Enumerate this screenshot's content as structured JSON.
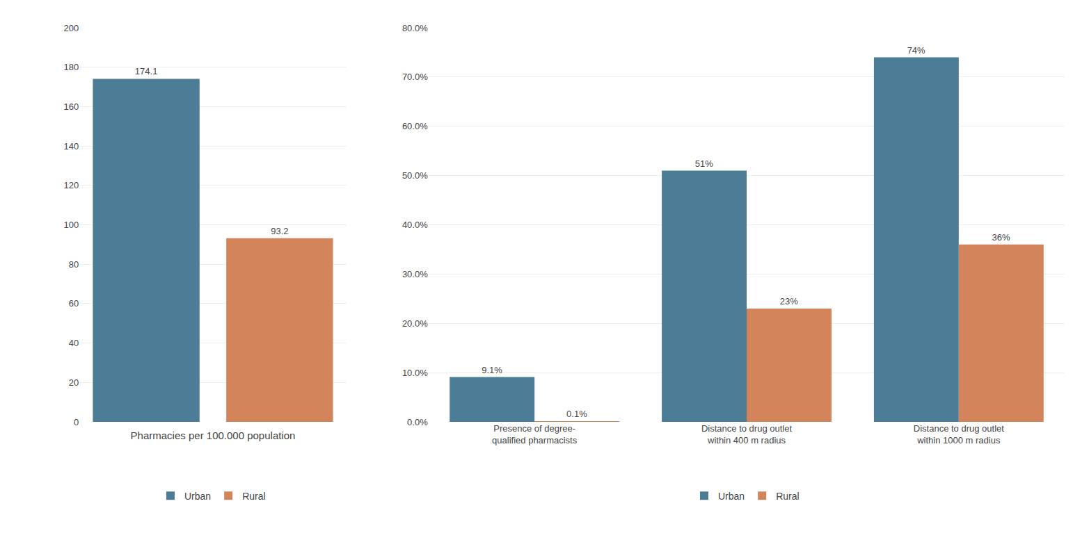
{
  "chart_data": [
    {
      "type": "bar",
      "categories": [
        "Urban",
        "Rural"
      ],
      "values": [
        174.1,
        93.2
      ],
      "colors": [
        "#4d7d96",
        "#d4845a"
      ],
      "xlabel": "Pharmacies per 100.000 population",
      "ylim": [
        0,
        200
      ],
      "yticks": [
        0,
        20,
        40,
        60,
        80,
        100,
        120,
        140,
        160,
        180,
        200
      ],
      "grid": true,
      "data_labels": true,
      "tick_labels": "y",
      "legend": "bottom"
    },
    {
      "type": "bar",
      "categories": [
        "Presence of degree-\nqualified pharmacists",
        "Distance to drug outlet\nwithin 400 m radius",
        "Distance to drug outlet\nwithin 1000 m radius"
      ],
      "series": [
        {
          "name": "Urban",
          "color": "#4d7d96",
          "values": [
            0.091,
            0.51,
            0.74
          ],
          "value_labels": [
            "9.1%",
            "51%",
            "74%"
          ]
        },
        {
          "name": "Rural",
          "color": "#d4845a",
          "values": [
            0.001,
            0.23,
            0.36
          ],
          "value_labels": [
            "0.1%",
            "23%",
            "36%"
          ]
        }
      ],
      "ylim": [
        0,
        0.8
      ],
      "yticks": [
        {
          "value": 0.0,
          "label": "0.0%"
        },
        {
          "value": 0.1,
          "label": "10.0%"
        },
        {
          "value": 0.2,
          "label": "20.0%"
        },
        {
          "value": 0.3,
          "label": "30.0%"
        },
        {
          "value": 0.4,
          "label": "40.0%"
        },
        {
          "value": 0.5,
          "label": "50.0%"
        },
        {
          "value": 0.6,
          "label": "60.0%"
        },
        {
          "value": 0.7,
          "label": "70.0%"
        },
        {
          "value": 0.8,
          "label": "80.0%"
        }
      ],
      "grid": true,
      "data_labels": true,
      "legend": "bottom"
    }
  ]
}
